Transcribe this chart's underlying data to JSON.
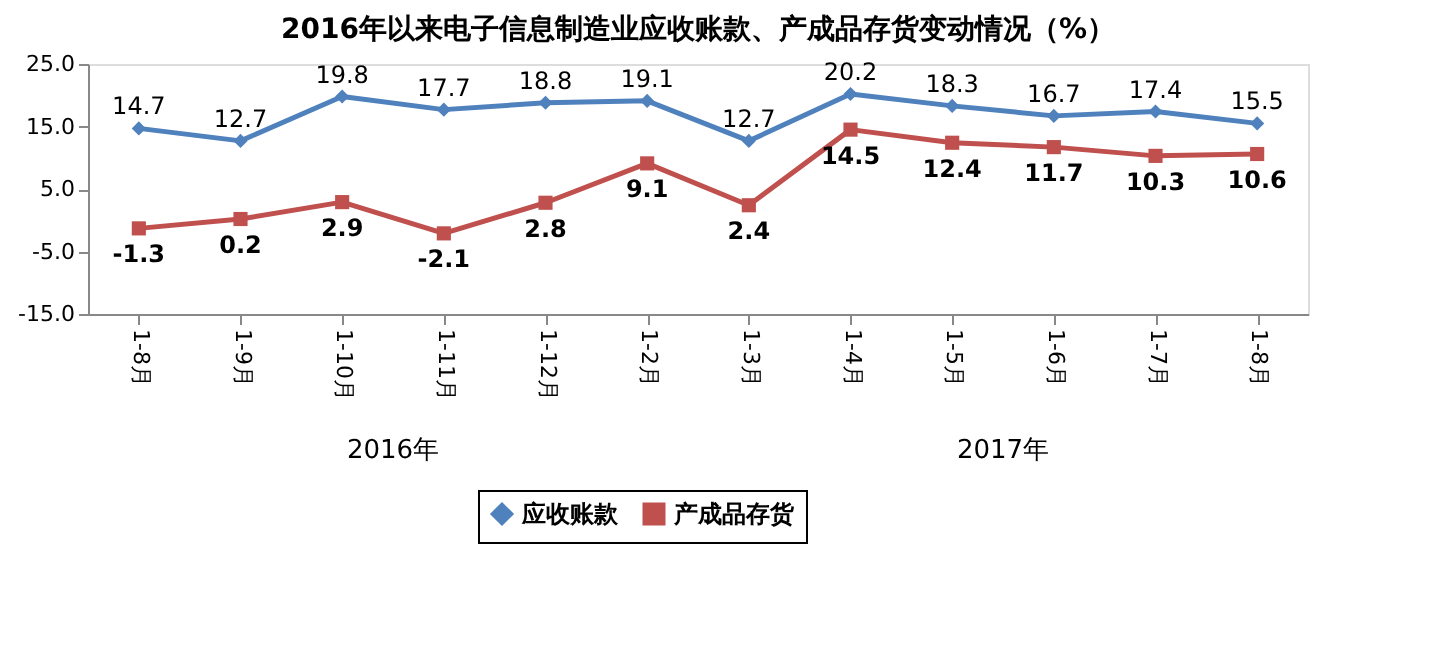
{
  "chart_data": {
    "type": "line",
    "title": "2016年以来电子信息制造业应收账款、产成品存货变动情况（%）",
    "categories": [
      "1-8月",
      "1-9月",
      "1-10月",
      "1-11月",
      "1-12月",
      "1-2月",
      "1-3月",
      "1-4月",
      "1-5月",
      "1-6月",
      "1-7月",
      "1-8月"
    ],
    "series": [
      {
        "name": "应收账款",
        "color": "#4f81bd",
        "marker": "diamond",
        "values": [
          14.7,
          12.7,
          19.8,
          17.7,
          18.8,
          19.1,
          12.7,
          20.2,
          18.3,
          16.7,
          17.4,
          15.5
        ]
      },
      {
        "name": "产成品存货",
        "color": "#c0504d",
        "marker": "square",
        "values": [
          -1.3,
          0.2,
          2.9,
          -2.1,
          2.8,
          9.1,
          2.4,
          14.5,
          12.4,
          11.7,
          10.3,
          10.6
        ]
      }
    ],
    "ylim": [
      -15,
      25
    ],
    "yticks": [
      {
        "value": -15,
        "label": "-15.0"
      },
      {
        "value": -5,
        "label": "-5.0"
      },
      {
        "value": 5,
        "label": "5.0"
      },
      {
        "value": 15,
        "label": "15.0"
      },
      {
        "value": 25,
        "label": "25.0"
      }
    ],
    "annotations": [
      "2016年",
      "2017年"
    ],
    "data_labels": true,
    "grid": false,
    "legend": "bottom"
  }
}
